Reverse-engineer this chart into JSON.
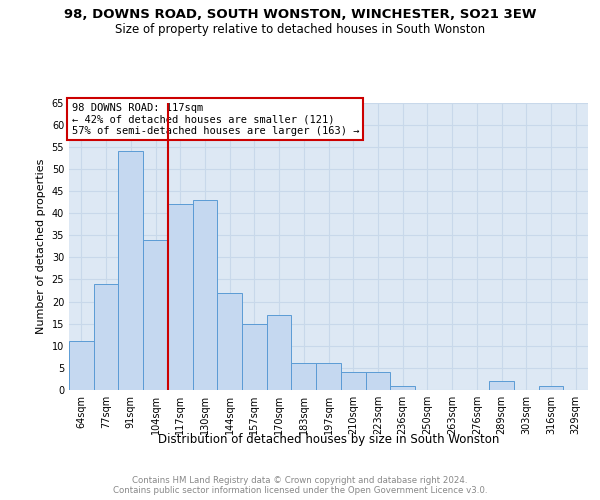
{
  "title1": "98, DOWNS ROAD, SOUTH WONSTON, WINCHESTER, SO21 3EW",
  "title2": "Size of property relative to detached houses in South Wonston",
  "xlabel": "Distribution of detached houses by size in South Wonston",
  "ylabel": "Number of detached properties",
  "footer1": "Contains HM Land Registry data © Crown copyright and database right 2024.",
  "footer2": "Contains public sector information licensed under the Open Government Licence v3.0.",
  "annotation_line1": "98 DOWNS ROAD: 117sqm",
  "annotation_line2": "← 42% of detached houses are smaller (121)",
  "annotation_line3": "57% of semi-detached houses are larger (163) →",
  "bar_labels": [
    "64sqm",
    "77sqm",
    "91sqm",
    "104sqm",
    "117sqm",
    "130sqm",
    "144sqm",
    "157sqm",
    "170sqm",
    "183sqm",
    "197sqm",
    "210sqm",
    "223sqm",
    "236sqm",
    "250sqm",
    "263sqm",
    "276sqm",
    "289sqm",
    "303sqm",
    "316sqm",
    "329sqm"
  ],
  "bar_values": [
    11,
    24,
    54,
    34,
    42,
    43,
    22,
    15,
    17,
    6,
    6,
    4,
    4,
    1,
    0,
    0,
    0,
    2,
    0,
    1,
    0
  ],
  "bar_color": "#c5d8f0",
  "bar_edge_color": "#5b9bd5",
  "vline_color": "#cc0000",
  "annotation_box_color": "#cc0000",
  "grid_color": "#c8d8ea",
  "bg_color": "#dde8f4",
  "ylim": [
    0,
    65
  ],
  "yticks": [
    0,
    5,
    10,
    15,
    20,
    25,
    30,
    35,
    40,
    45,
    50,
    55,
    60,
    65
  ],
  "title1_fontsize": 9.5,
  "title2_fontsize": 8.5,
  "xlabel_fontsize": 8.5,
  "ylabel_fontsize": 8.0,
  "tick_fontsize": 7.0,
  "annot_fontsize": 7.5,
  "footer_fontsize": 6.2
}
